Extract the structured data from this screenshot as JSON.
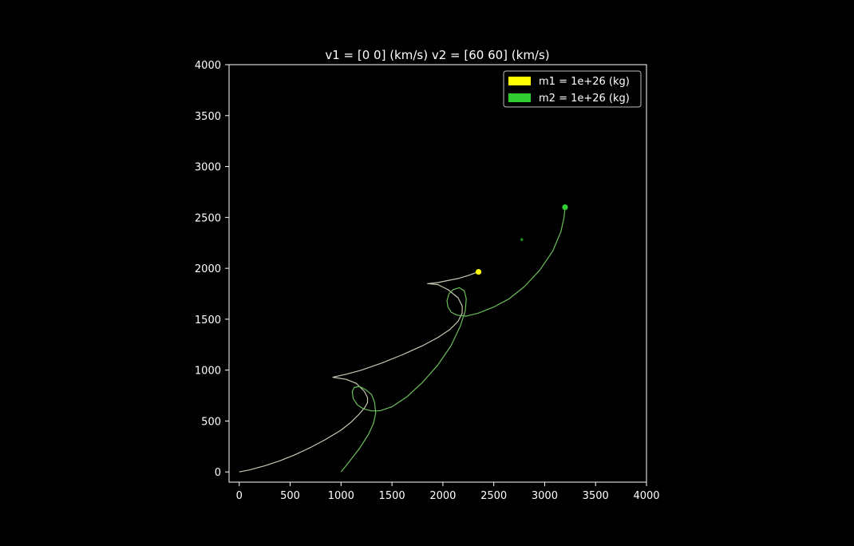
{
  "chart_data": {
    "type": "line",
    "title": "v1 = [0 0] (km/s) v2 = [60 60] (km/s)",
    "xlabel": "",
    "ylabel": "",
    "xlim": [
      -100,
      4000
    ],
    "ylim": [
      -100,
      4000
    ],
    "xticks": [
      0,
      500,
      1000,
      1500,
      2000,
      2500,
      3000,
      3500,
      4000
    ],
    "yticks": [
      0,
      500,
      1000,
      1500,
      2000,
      2500,
      3000,
      3500,
      4000
    ],
    "xtick_labels": [
      "0",
      "500",
      "1000",
      "1500",
      "2000",
      "2500",
      "3000",
      "3500",
      "4000"
    ],
    "ytick_labels": [
      "0",
      "500",
      "1000",
      "1500",
      "2000",
      "2500",
      "3000",
      "3500",
      "4000"
    ],
    "grid": false,
    "legend_position": "top-right",
    "legend": [
      {
        "label": "m1 = 1e+26 (kg)",
        "color": "#ffff00"
      },
      {
        "label": "m2 = 1e+26 (kg)",
        "color": "#32cd32"
      }
    ],
    "series": [
      {
        "color": "#c8c8b4",
        "x": [
          0,
          100,
          250,
          400,
          550,
          700,
          850,
          1000,
          1100,
          1180,
          1230,
          1260,
          1260,
          1230,
          1150,
          1050,
          920,
          1050,
          1200,
          1400,
          1600,
          1800,
          1950,
          2070,
          2150,
          2190,
          2190,
          2150,
          2050,
          1950,
          1850,
          1950,
          2050,
          2150,
          2250,
          2350
        ],
        "y": [
          0,
          20,
          60,
          110,
          170,
          240,
          320,
          410,
          490,
          570,
          630,
          680,
          730,
          790,
          870,
          910,
          930,
          960,
          1000,
          1070,
          1150,
          1240,
          1320,
          1400,
          1480,
          1560,
          1630,
          1710,
          1790,
          1840,
          1850,
          1860,
          1880,
          1900,
          1930,
          1965
        ]
      },
      {
        "color": "#6cbf5a",
        "x": [
          1000,
          1080,
          1180,
          1270,
          1320,
          1340,
          1330,
          1300,
          1240,
          1180,
          1130,
          1110,
          1120,
          1160,
          1220,
          1300,
          1380,
          1500,
          1650,
          1800,
          1950,
          2080,
          2170,
          2220,
          2230,
          2210,
          2160,
          2100,
          2060,
          2040,
          2050,
          2080,
          2140,
          2230,
          2350,
          2500,
          2650,
          2800,
          2950,
          3080,
          3160,
          3190,
          3200
        ],
        "y": [
          0,
          100,
          230,
          370,
          480,
          580,
          680,
          760,
          810,
          840,
          830,
          790,
          720,
          660,
          620,
          600,
          600,
          640,
          740,
          880,
          1050,
          1240,
          1430,
          1580,
          1700,
          1780,
          1810,
          1790,
          1750,
          1680,
          1620,
          1570,
          1540,
          1530,
          1560,
          1620,
          1700,
          1820,
          1980,
          2170,
          2360,
          2500,
          2600
        ]
      }
    ],
    "markers": [
      {
        "x": 2350,
        "y": 1965,
        "color": "#ffff00"
      },
      {
        "x": 3200,
        "y": 2600,
        "color": "#32cd32"
      },
      {
        "x": 2775,
        "y": 2282,
        "color": "#228b22"
      }
    ],
    "colors": {
      "background": "#000000",
      "axes": "#ffffff",
      "text": "#ffffff"
    }
  }
}
